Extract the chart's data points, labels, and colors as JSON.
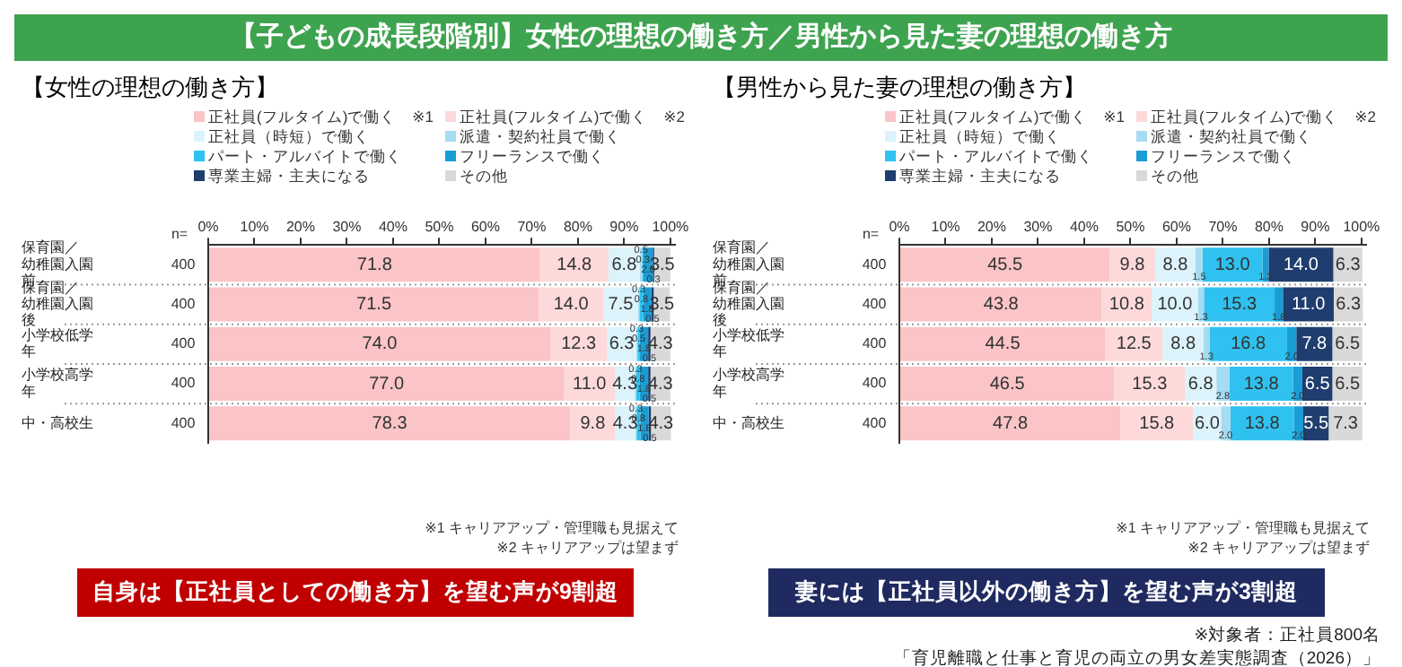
{
  "chart_data": [
    {
      "type": "bar",
      "orientation": "horizontal",
      "stacked": true,
      "title": "【女性の理想の働き方】",
      "categories": [
        "保育園／幼稚園入園前",
        "保育園／幼稚園入園後",
        "小学校低学年",
        "小学校高学年",
        "中・高校生"
      ],
      "series": [
        {
          "name": "正社員(フルタイム)で働く　※1",
          "color": "#fbc4c6",
          "values": [
            71.8,
            71.5,
            74.0,
            77.0,
            78.3
          ],
          "value_labels": [
            "71.8",
            "71.5",
            "74.0",
            "77.0",
            "78.3"
          ]
        },
        {
          "name": "正社員(フルタイム)で働く　※2",
          "color": "#fdd9da",
          "values": [
            14.8,
            14.0,
            12.3,
            11.0,
            9.8
          ],
          "value_labels": [
            "14.8",
            "14.0",
            "12.3",
            "11.0",
            "9.8"
          ]
        },
        {
          "name": "正社員（時短）で働く",
          "color": "#dcf3fc",
          "values": [
            6.8,
            7.5,
            6.3,
            4.3,
            4.3
          ],
          "value_labels": [
            "6.8",
            "7.5",
            "6.3",
            "4.3",
            "4.3"
          ]
        },
        {
          "name": "派遣・契約社員で働く",
          "color": "#a6dcf2",
          "values": [
            0.5,
            0.3,
            0.3,
            0.3,
            0.3
          ],
          "value_labels": [
            "0.5",
            "0.3",
            "0.3",
            "0.3",
            "0.3"
          ]
        },
        {
          "name": "パート・アルバイトで働く",
          "color": "#2fc1ef",
          "values": [
            0.3,
            0.8,
            0.5,
            0.8,
            0.8
          ],
          "value_labels": [
            "0.3",
            "0.8",
            "0.5",
            "0.8",
            "0.8"
          ]
        },
        {
          "name": "フリーランスで働く",
          "color": "#1a9dd5",
          "values": [
            2.0,
            1.8,
            1.8,
            1.8,
            1.8
          ],
          "value_labels": [
            "2.0",
            "1.8",
            "1.8",
            "1.8",
            "1.8"
          ]
        },
        {
          "name": "専業主婦・主夫になる",
          "color": "#1f3d6e",
          "values": [
            0.3,
            0.5,
            0.5,
            0.5,
            0.5
          ],
          "value_labels": [
            "0.3",
            "0.5",
            "0.5",
            "0.5",
            "0.5"
          ]
        },
        {
          "name": "その他",
          "color": "#d9d9d9",
          "values": [
            3.5,
            3.5,
            4.3,
            4.3,
            4.3
          ],
          "value_labels": [
            "3.5",
            "3.5",
            "4.3",
            "4.3",
            "4.3"
          ]
        }
      ],
      "xlim": [
        0,
        101
      ],
      "xticks": [
        {
          "value": 0,
          "label": "0%"
        },
        {
          "value": 10,
          "label": "10%"
        },
        {
          "value": 20,
          "label": "20%"
        },
        {
          "value": 30,
          "label": "30%"
        },
        {
          "value": 40,
          "label": "40%"
        },
        {
          "value": 50,
          "label": "50%"
        },
        {
          "value": 60,
          "label": "60%"
        },
        {
          "value": 70,
          "label": "70%"
        },
        {
          "value": 80,
          "label": "80%"
        },
        {
          "value": 90,
          "label": "90%"
        },
        {
          "value": 100,
          "label": "100%"
        }
      ],
      "legend": "top",
      "annotations": [
        "【子どもの成長段階別】女性の理想の働き方／男性から見た妻の理想の働き方",
        "n=",
        "※1 キャリアアップ・管理職も見据えて",
        "※2 キャリアアップは望まず",
        "自身は【正社員としての働き方】を望む声が9割超",
        "400",
        "400",
        "400",
        "400",
        "400"
      ]
    },
    {
      "type": "bar",
      "orientation": "horizontal",
      "stacked": true,
      "title": "【男性から見た妻の理想の働き方】",
      "categories": [
        "保育園／幼稚園入園前",
        "保育園／幼稚園入園後",
        "小学校低学年",
        "小学校高学年",
        "中・高校生"
      ],
      "series": [
        {
          "name": "正社員(フルタイム)で働く　※1",
          "color": "#fbc4c6",
          "values": [
            45.5,
            43.8,
            44.5,
            46.5,
            47.8
          ],
          "value_labels": [
            "45.5",
            "43.8",
            "44.5",
            "46.5",
            "47.8"
          ]
        },
        {
          "name": "正社員(フルタイム)で働く　※2",
          "color": "#fdd9da",
          "values": [
            9.8,
            10.8,
            12.5,
            15.3,
            15.8
          ],
          "value_labels": [
            "9.8",
            "10.8",
            "12.5",
            "15.3",
            "15.8"
          ]
        },
        {
          "name": "正社員（時短）で働く",
          "color": "#dcf3fc",
          "values": [
            8.8,
            10.0,
            8.8,
            6.8,
            6.0
          ],
          "value_labels": [
            "8.8",
            "10.0",
            "8.8",
            "6.8",
            "6.0"
          ]
        },
        {
          "name": "派遣・契約社員で働く",
          "color": "#a6dcf2",
          "values": [
            1.5,
            1.3,
            1.3,
            2.8,
            2.0
          ],
          "value_labels": [
            "1.5",
            "1.3",
            "1.3",
            "2.8",
            "2.0"
          ]
        },
        {
          "name": "パート・アルバイトで働く",
          "color": "#2fc1ef",
          "values": [
            13.0,
            15.3,
            16.8,
            13.8,
            13.8
          ],
          "value_labels": [
            "13.0",
            "15.3",
            "16.8",
            "13.8",
            "13.8"
          ]
        },
        {
          "name": "フリーランスで働く",
          "color": "#1a9dd5",
          "values": [
            1.3,
            1.8,
            2.0,
            2.0,
            2.0
          ],
          "value_labels": [
            "1.3",
            "1.8",
            "2.0",
            "2.0",
            "2.0"
          ]
        },
        {
          "name": "専業主婦・主夫になる",
          "color": "#1f3d6e",
          "values": [
            14.0,
            11.0,
            7.8,
            6.5,
            5.5
          ],
          "value_labels": [
            "14.0",
            "11.0",
            "7.8",
            "6.5",
            "5.5"
          ]
        },
        {
          "name": "その他",
          "color": "#d9d9d9",
          "values": [
            6.3,
            6.3,
            6.5,
            6.5,
            7.3
          ],
          "value_labels": [
            "6.3",
            "6.3",
            "6.5",
            "6.5",
            "7.3"
          ]
        }
      ],
      "xlim": [
        0,
        101
      ],
      "xticks": [
        {
          "value": 0,
          "label": "0%"
        },
        {
          "value": 10,
          "label": "10%"
        },
        {
          "value": 20,
          "label": "20%"
        },
        {
          "value": 30,
          "label": "30%"
        },
        {
          "value": 40,
          "label": "40%"
        },
        {
          "value": 50,
          "label": "50%"
        },
        {
          "value": 60,
          "label": "60%"
        },
        {
          "value": 70,
          "label": "70%"
        },
        {
          "value": 80,
          "label": "80%"
        },
        {
          "value": 90,
          "label": "90%"
        },
        {
          "value": 100,
          "label": "100%"
        }
      ],
      "legend": "top",
      "annotations": [
        "n=",
        "※1 キャリアアップ・管理職も見据えて",
        "※2 キャリアアップは望まず",
        "妻には【正社員以外の働き方】を望む声が3割超",
        "※対象者：正社員800名",
        "「育児離職と仕事と育児の両立の男女差実態調査（2026）」",
        "400",
        "400",
        "400",
        "400",
        "400"
      ]
    }
  ]
}
